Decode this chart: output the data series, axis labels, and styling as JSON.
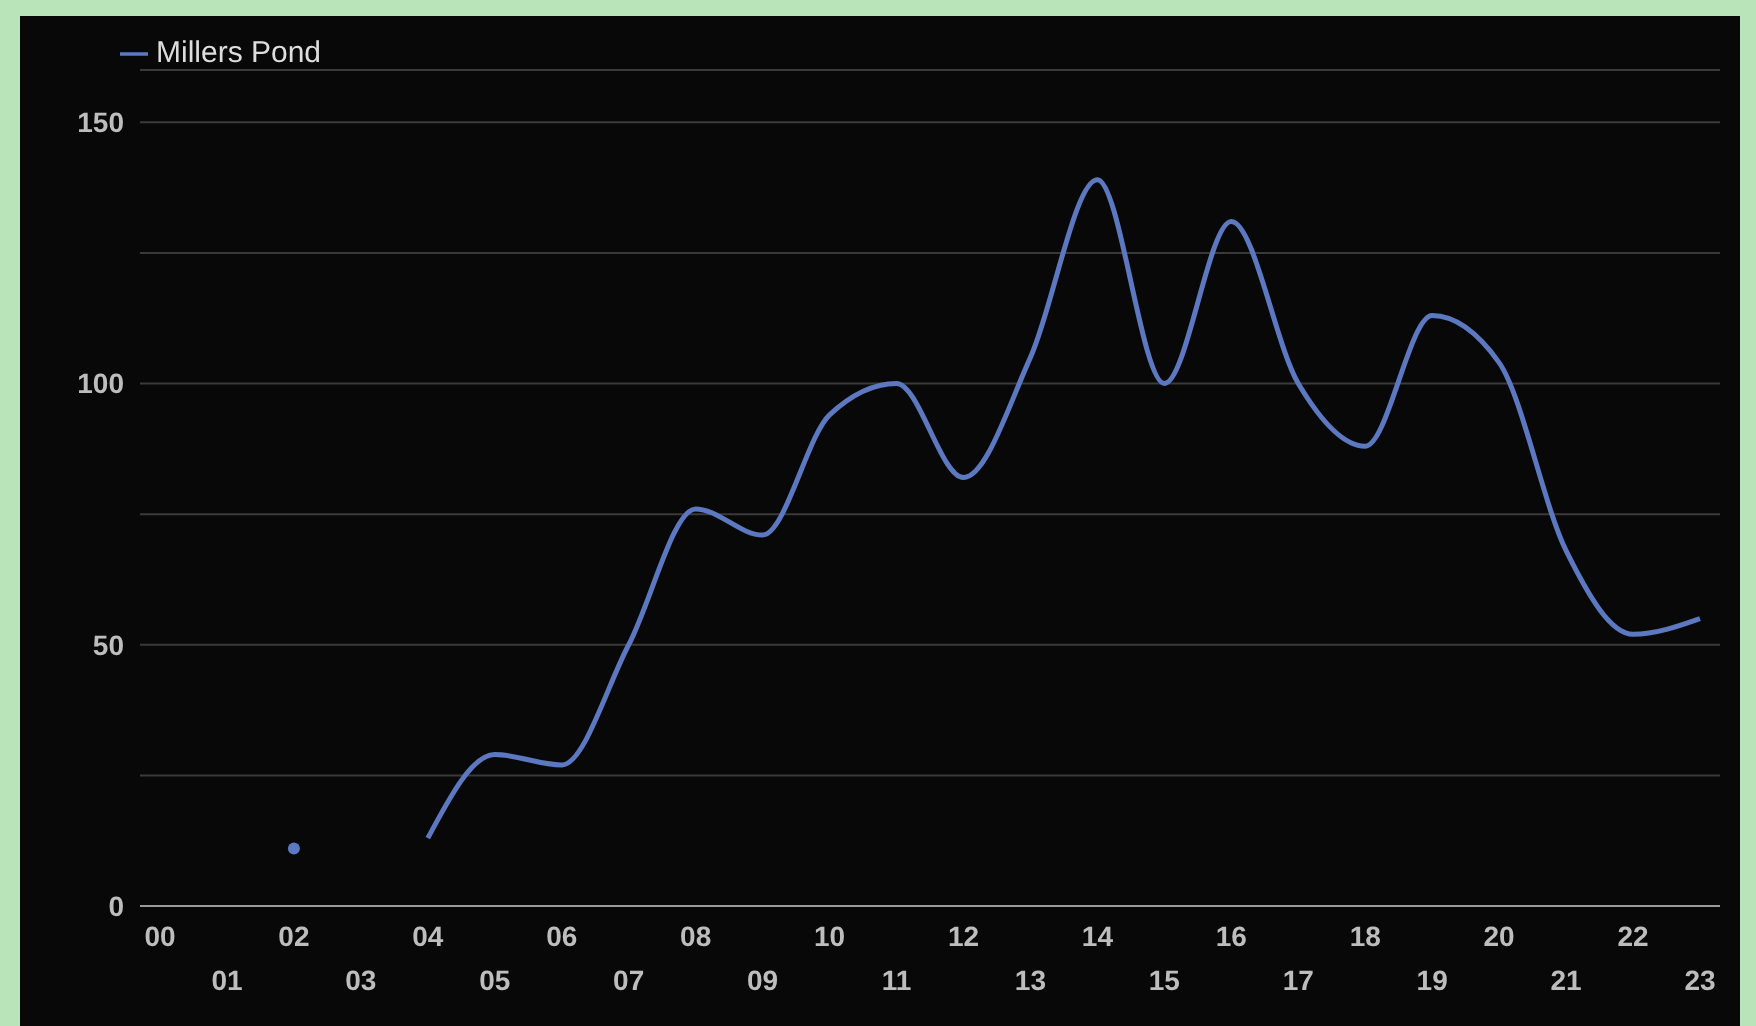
{
  "chart_data": {
    "type": "line",
    "categories": [
      "00",
      "01",
      "02",
      "03",
      "04",
      "05",
      "06",
      "07",
      "08",
      "09",
      "10",
      "11",
      "12",
      "13",
      "14",
      "15",
      "16",
      "17",
      "18",
      "19",
      "20",
      "21",
      "22",
      "23"
    ],
    "series": [
      {
        "name": "Millers Pond",
        "color": "#5b78c0",
        "values": [
          null,
          null,
          11,
          null,
          13,
          29,
          27,
          50,
          76,
          71,
          94,
          100,
          82,
          105,
          139,
          100,
          131,
          100,
          88,
          113,
          104,
          68,
          52,
          55
        ]
      }
    ],
    "ylim": [
      0,
      160
    ],
    "yticks": [
      0,
      {
        "value": 25,
        "label": null
      },
      50,
      {
        "value": 75,
        "label": null
      },
      100,
      {
        "value": 125,
        "label": null
      },
      150
    ],
    "grid": "y",
    "legend": "top left"
  }
}
